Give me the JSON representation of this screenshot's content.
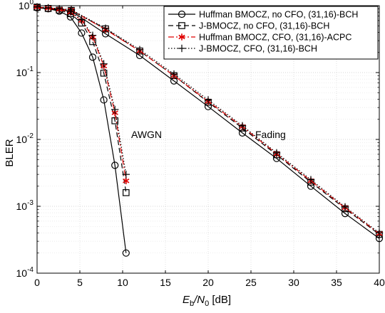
{
  "chart_data": {
    "type": "line",
    "xlabel": {
      "italic_e": "E",
      "sub_b": "b",
      "slash_n": "/N",
      "sub_0": "0",
      "unit": " [dB]"
    },
    "ylabel": "BLER",
    "xlim": [
      0,
      40
    ],
    "ylim": [
      0.0001,
      1
    ],
    "y_scale": "log",
    "grid": true,
    "x_ticks": [
      "0",
      "5",
      "10",
      "15",
      "20",
      "25",
      "30",
      "35",
      "40"
    ],
    "y_ticks": [
      {
        "base": "10",
        "exp": "0"
      },
      {
        "base": "10",
        "exp": "-1"
      },
      {
        "base": "10",
        "exp": "-2"
      },
      {
        "base": "10",
        "exp": "-3"
      },
      {
        "base": "10",
        "exp": "-4"
      }
    ],
    "legend_position": "top-right",
    "annotations": [
      {
        "text": "AWGN",
        "x": 11.0,
        "y": 0.0105
      },
      {
        "text": "Fading",
        "x": 25.5,
        "y": 0.0105
      }
    ],
    "series": [
      {
        "name": "Huffman BMOCZ, no CFO, (31,16)-BCH",
        "color": "#000000",
        "dash": "solid",
        "marker": "circle",
        "groups": [
          {
            "x": [
              0,
              1.3,
              2.6,
              3.9,
              5.2,
              6.5,
              7.8,
              9.1,
              10.4
            ],
            "y": [
              0.94,
              0.9,
              0.83,
              0.68,
              0.39,
              0.17,
              0.039,
              0.0041,
              0.0002
            ]
          },
          {
            "x": [
              0,
              4,
              8,
              12,
              16,
              20,
              24,
              28,
              32,
              36,
              40
            ],
            "y": [
              0.93,
              0.83,
              0.38,
              0.18,
              0.075,
              0.031,
              0.0125,
              0.0052,
              0.002,
              0.00078,
              0.00033
            ]
          }
        ]
      },
      {
        "name": "J-BMOCZ, no CFO, (31,16)-BCH",
        "color": "#000000",
        "dash": "dashed",
        "marker": "square",
        "groups": [
          {
            "x": [
              0,
              1.3,
              2.6,
              3.9,
              5.2,
              6.5,
              7.8,
              9.1,
              10.4
            ],
            "y": [
              0.95,
              0.91,
              0.86,
              0.76,
              0.55,
              0.29,
              0.098,
              0.019,
              0.0016
            ]
          },
          {
            "x": [
              0,
              4,
              8,
              12,
              16,
              20,
              24,
              28,
              32,
              36,
              40
            ],
            "y": [
              0.95,
              0.85,
              0.45,
              0.21,
              0.09,
              0.036,
              0.0148,
              0.0059,
              0.0023,
              0.00092,
              0.00038
            ]
          }
        ]
      },
      {
        "name": "Huffman BMOCZ, CFO, (31,16)-ACPC",
        "color": "#e00000",
        "dash": "dashdot",
        "marker": "asterisk",
        "groups": [
          {
            "x": [
              0,
              1.3,
              2.6,
              3.9,
              5.2,
              6.5,
              7.8,
              9.1,
              10.4
            ],
            "y": [
              0.95,
              0.92,
              0.88,
              0.8,
              0.6,
              0.34,
              0.125,
              0.025,
              0.0024
            ]
          },
          {
            "x": [
              0,
              4,
              8,
              12,
              16,
              20,
              24,
              28,
              32,
              36,
              40
            ],
            "y": [
              0.96,
              0.86,
              0.44,
              0.21,
              0.09,
              0.037,
              0.0155,
              0.0061,
              0.0024,
              0.00095,
              0.00039
            ]
          }
        ]
      },
      {
        "name": "J-BMOCZ, CFO, (31,16)-BCH",
        "color": "#000000",
        "dash": "dotted",
        "marker": "plus",
        "groups": [
          {
            "x": [
              0,
              1.3,
              2.6,
              3.9,
              5.2,
              6.5,
              7.8,
              9.1,
              10.4
            ],
            "y": [
              0.96,
              0.93,
              0.9,
              0.82,
              0.62,
              0.36,
              0.135,
              0.028,
              0.003
            ]
          },
          {
            "x": [
              0,
              4,
              8,
              12,
              16,
              20,
              24,
              28,
              32,
              36,
              40
            ],
            "y": [
              0.96,
              0.87,
              0.46,
              0.22,
              0.095,
              0.039,
              0.016,
              0.0063,
              0.0025,
              0.00098,
              0.0004
            ]
          }
        ]
      }
    ]
  }
}
